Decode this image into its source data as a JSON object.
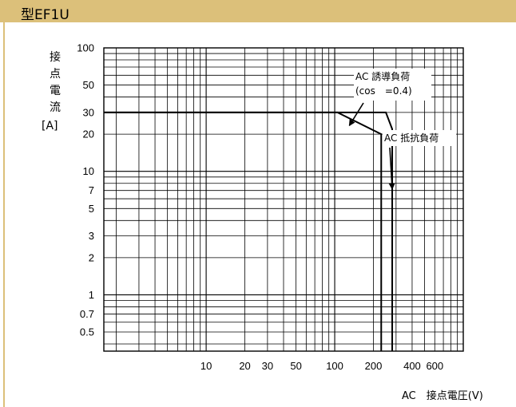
{
  "header": {
    "title": "型EF1U"
  },
  "colors": {
    "title_bar": "#dcc07a",
    "ink": "#000000"
  },
  "chart_data": {
    "type": "line",
    "ylabel": "接点電流",
    "yunit": "[A]",
    "xlabel": "AC　接点電圧(V)",
    "x_scale": "log",
    "y_scale": "log",
    "xlim": [
      1.6,
      1000
    ],
    "ylim": [
      0.35,
      100
    ],
    "grid": true,
    "x_ticks": [
      {
        "value": 10,
        "label": "10"
      },
      {
        "value": 20,
        "label": "20"
      },
      {
        "value": 30,
        "label": "30"
      },
      {
        "value": 50,
        "label": "50"
      },
      {
        "value": 100,
        "label": "100"
      },
      {
        "value": 200,
        "label": "200"
      },
      {
        "value": 400,
        "label": "400"
      },
      {
        "value": 600,
        "label": "600"
      }
    ],
    "y_ticks": [
      {
        "value": 100,
        "label": "100"
      },
      {
        "value": 50,
        "label": "50"
      },
      {
        "value": 30,
        "label": "30"
      },
      {
        "value": 20,
        "label": "20"
      },
      {
        "value": 10,
        "label": "10"
      },
      {
        "value": 7,
        "label": "7"
      },
      {
        "value": 5,
        "label": "5"
      },
      {
        "value": 3,
        "label": "3"
      },
      {
        "value": 2,
        "label": "2"
      },
      {
        "value": 1,
        "label": "1"
      },
      {
        "value": 0.7,
        "label": "0.7"
      },
      {
        "value": 0.5,
        "label": "0.5"
      }
    ],
    "series": [
      {
        "name": "AC 誘導負荷 (cos　=0.4)",
        "points": [
          [
            1.6,
            30
          ],
          [
            105,
            30
          ],
          [
            230,
            20
          ],
          [
            230,
            0.35
          ]
        ]
      },
      {
        "name": "AC 抵抗負荷",
        "points": [
          [
            1.6,
            30
          ],
          [
            250,
            30
          ],
          [
            280,
            22
          ],
          [
            280,
            0.35
          ]
        ]
      }
    ],
    "annotations": [
      {
        "lines": [
          "AC 誘導負荷",
          "(cos　=0.4)"
        ],
        "arrow_to": [
          130,
          23.5
        ]
      },
      {
        "lines": [
          "AC 抵抗負荷"
        ],
        "arrow_to": [
          280,
          7.2
        ]
      }
    ]
  }
}
